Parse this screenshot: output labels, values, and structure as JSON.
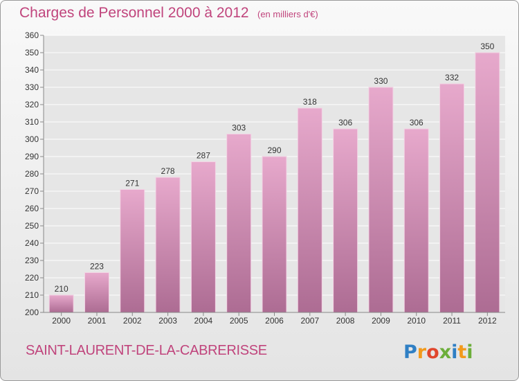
{
  "header": {
    "title": "Charges de Personnel 2000 à 2012",
    "subtitle": "(en milliers d'€)"
  },
  "footer": {
    "place": "SAINT-LAURENT-DE-LA-CABRERISSE",
    "logo_text": "Proxiti"
  },
  "colors": {
    "accent": "#c0447c",
    "bar_top": "#e7a9cc",
    "bar_bottom": "#ad6c93"
  },
  "chart_data": {
    "type": "bar",
    "categories": [
      "2000",
      "2001",
      "2002",
      "2003",
      "2004",
      "2005",
      "2006",
      "2007",
      "2008",
      "2009",
      "2010",
      "2011",
      "2012"
    ],
    "values": [
      210,
      223,
      271,
      278,
      287,
      303,
      290,
      318,
      306,
      330,
      306,
      332,
      350
    ],
    "title": "Charges de Personnel 2000 à 2012",
    "xlabel": "",
    "ylabel": "",
    "ylim": [
      200,
      360
    ],
    "yticks": [
      200,
      210,
      220,
      230,
      240,
      250,
      260,
      270,
      280,
      290,
      300,
      310,
      320,
      330,
      340,
      350,
      360
    ],
    "grid": true,
    "legend": "none"
  }
}
